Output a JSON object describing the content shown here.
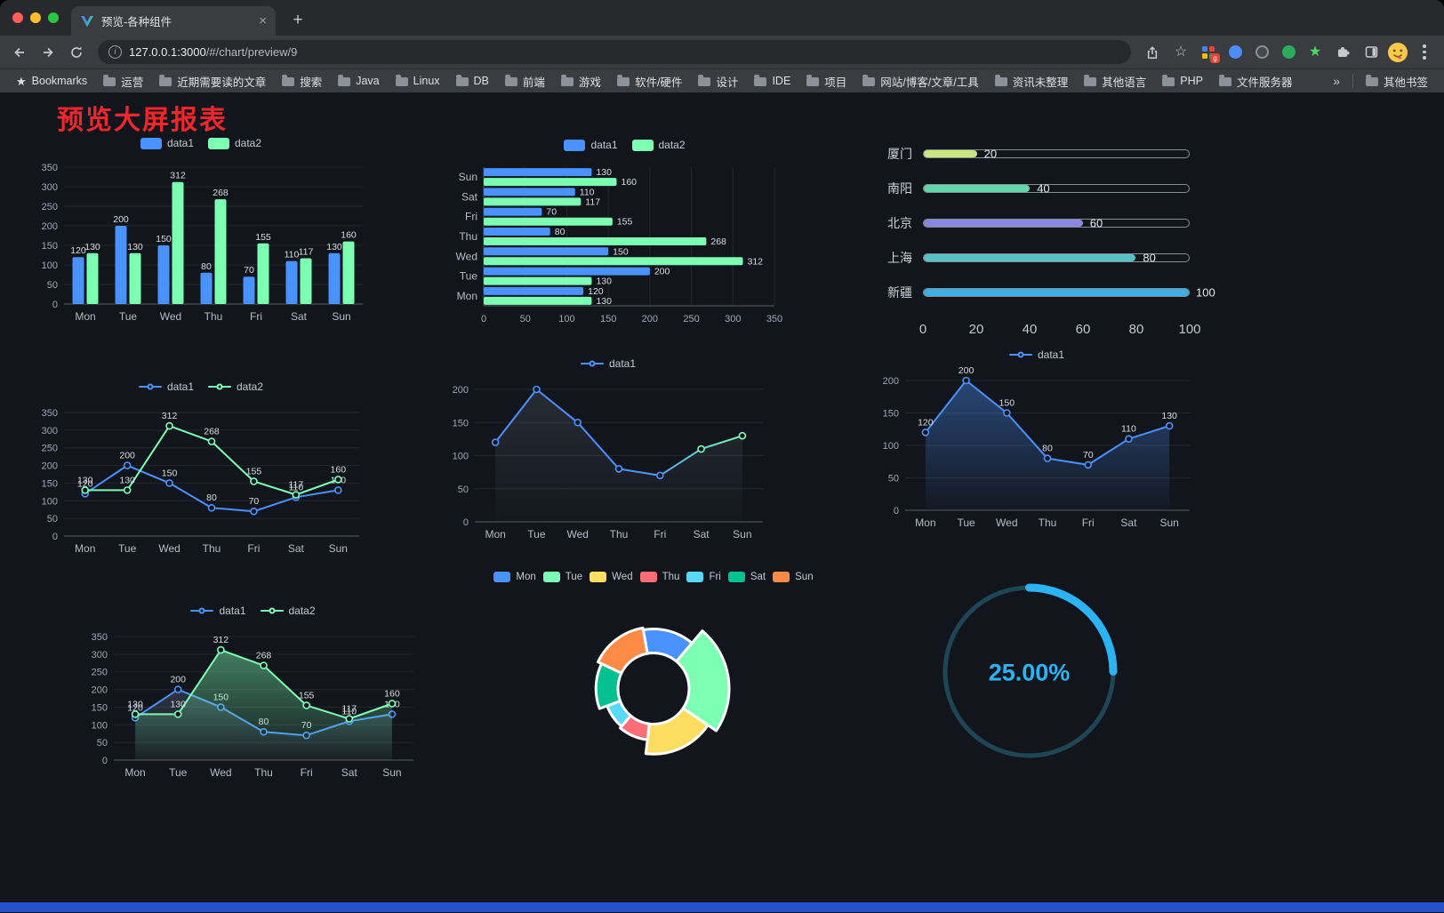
{
  "browser": {
    "tab_title": "预览-各种组件",
    "new_tab": "+",
    "url_host": "127.0.0.1:3000",
    "url_path": "/#/chart/preview/9",
    "extension_badge": "g",
    "bookmarks": {
      "first": "Bookmarks",
      "items": [
        "运营",
        "近期需要读的文章",
        "搜索",
        "Java",
        "Linux",
        "DB",
        "前端",
        "游戏",
        "软件/硬件",
        "设计",
        "IDE",
        "项目",
        "网站/博客/文章/工具",
        "资讯未整理",
        "其他语言",
        "PHP",
        "文件服务器"
      ],
      "overflow": "»",
      "other": "其他书签"
    }
  },
  "page": {
    "title": "预览大屏报表"
  },
  "chart_data": [
    {
      "id": "bar-vertical",
      "type": "bar",
      "categories": [
        "Mon",
        "Tue",
        "Wed",
        "Thu",
        "Fri",
        "Sat",
        "Sun"
      ],
      "series": [
        {
          "name": "data1",
          "color": "#4992ff",
          "values": [
            120,
            200,
            150,
            80,
            70,
            110,
            130
          ]
        },
        {
          "name": "data2",
          "color": "#7cffb2",
          "values": [
            130,
            130,
            312,
            268,
            155,
            117,
            160
          ]
        }
      ],
      "ylim": [
        0,
        350
      ],
      "ystep": 50,
      "value_labels": true,
      "legend_position": "top"
    },
    {
      "id": "bar-horizontal",
      "type": "hbar",
      "categories": [
        "Mon",
        "Tue",
        "Wed",
        "Thu",
        "Fri",
        "Sat",
        "Sun"
      ],
      "series": [
        {
          "name": "data1",
          "color": "#4992ff",
          "values": [
            120,
            200,
            150,
            80,
            70,
            110,
            130
          ]
        },
        {
          "name": "data2",
          "color": "#7cffb2",
          "values": [
            130,
            130,
            312,
            268,
            155,
            117,
            160
          ]
        }
      ],
      "xlim": [
        0,
        350
      ],
      "xstep": 50,
      "value_labels": true,
      "legend_position": "top"
    },
    {
      "id": "progress-bars",
      "type": "progress",
      "rows": [
        {
          "label": "厦门",
          "value": 20,
          "color": "#c8e87f"
        },
        {
          "label": "南阳",
          "value": 40,
          "color": "#63d5ab"
        },
        {
          "label": "北京",
          "value": 60,
          "color": "#8b87e0"
        },
        {
          "label": "上海",
          "value": 80,
          "color": "#56c2c5"
        },
        {
          "label": "新疆",
          "value": 100,
          "color": "#3cb0e4"
        }
      ],
      "xlim": [
        0,
        100
      ],
      "xticks": [
        0,
        20,
        40,
        60,
        80,
        100
      ]
    },
    {
      "id": "line-two",
      "type": "line",
      "categories": [
        "Mon",
        "Tue",
        "Wed",
        "Thu",
        "Fri",
        "Sat",
        "Sun"
      ],
      "series": [
        {
          "name": "data1",
          "color": "#4992ff",
          "values": [
            120,
            200,
            150,
            80,
            70,
            110,
            130
          ]
        },
        {
          "name": "data2",
          "color": "#7cffb2",
          "values": [
            130,
            130,
            312,
            268,
            155,
            117,
            160
          ]
        }
      ],
      "ylim": [
        0,
        350
      ],
      "ystep": 50,
      "value_labels": true,
      "legend_position": "top"
    },
    {
      "id": "line-single",
      "type": "line",
      "categories": [
        "Mon",
        "Tue",
        "Wed",
        "Thu",
        "Fri",
        "Sat",
        "Sun"
      ],
      "series": [
        {
          "name": "data1",
          "color": "#4992ff",
          "gradient_to": "#7cffb2",
          "values": [
            120,
            200,
            150,
            80,
            70,
            110,
            130
          ],
          "area": {
            "from": "rgba(150,162,184,0.16)",
            "to": "rgba(150,162,184,0.02)"
          }
        }
      ],
      "ylim": [
        0,
        200
      ],
      "ystep": 50,
      "value_labels": false,
      "legend_position": "top"
    },
    {
      "id": "line-area",
      "type": "line",
      "categories": [
        "Mon",
        "Tue",
        "Wed",
        "Thu",
        "Fri",
        "Sat",
        "Sun"
      ],
      "series": [
        {
          "name": "data1",
          "color": "#4992ff",
          "values": [
            120,
            200,
            150,
            80,
            70,
            110,
            130
          ],
          "area": {
            "from": "rgba(73,146,255,0.40)",
            "to": "rgba(73,146,255,0.03)"
          }
        }
      ],
      "ylim": [
        0,
        200
      ],
      "ystep": 50,
      "value_labels": true,
      "legend_position": "top"
    },
    {
      "id": "line-area-two",
      "type": "line",
      "categories": [
        "Mon",
        "Tue",
        "Wed",
        "Thu",
        "Fri",
        "Sat",
        "Sun"
      ],
      "series": [
        {
          "name": "data1",
          "color": "#4992ff",
          "values": [
            120,
            200,
            150,
            80,
            70,
            110,
            130
          ],
          "area": {
            "from": "rgba(110,130,160,0.30)",
            "to": "rgba(110,130,160,0.02)"
          }
        },
        {
          "name": "data2",
          "color": "#7cffb2",
          "values": [
            130,
            130,
            312,
            268,
            155,
            117,
            160
          ],
          "area": {
            "from": "rgba(124,255,178,0.45)",
            "to": "rgba(124,255,178,0.04)"
          }
        }
      ],
      "ylim": [
        0,
        350
      ],
      "ystep": 50,
      "value_labels": true,
      "legend_position": "top"
    },
    {
      "id": "pie-rose",
      "type": "pie",
      "rose": true,
      "start_angle": 100,
      "items": [
        {
          "name": "Mon",
          "value": 120,
          "color": "#4992ff"
        },
        {
          "name": "Tue",
          "value": 200,
          "color": "#7cffb2"
        },
        {
          "name": "Wed",
          "value": 150,
          "color": "#fddd60"
        },
        {
          "name": "Thu",
          "value": 80,
          "color": "#ff6e76"
        },
        {
          "name": "Fri",
          "value": 70,
          "color": "#58d9f9"
        },
        {
          "name": "Sat",
          "value": 110,
          "color": "#05c091"
        },
        {
          "name": "Sun",
          "value": 130,
          "color": "#ff8a45"
        }
      ]
    },
    {
      "id": "gauge",
      "type": "gauge",
      "percent": 25,
      "label": "25.00%",
      "color": "#2bb3f3",
      "track_color": "#1d4757"
    }
  ]
}
